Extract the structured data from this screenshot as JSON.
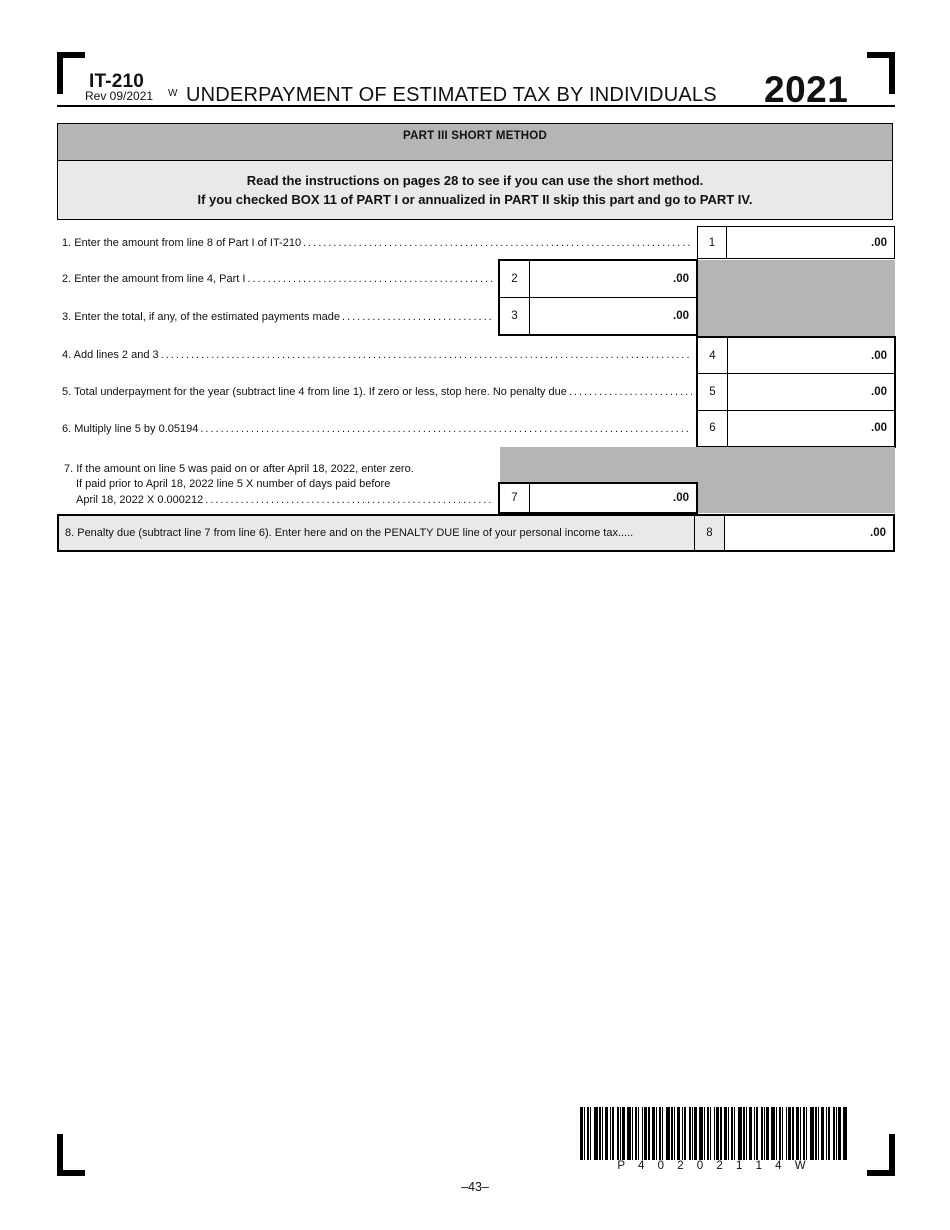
{
  "header": {
    "form_id": "IT-210",
    "revision": "Rev 09/2021",
    "w_mark": "W",
    "title": "UNDERPAYMENT OF ESTIMATED TAX BY INDIVIDUALS",
    "year": "2021"
  },
  "part3": {
    "bar_title": "PART III SHORT METHOD",
    "instructions_line1": "Read the instructions on pages 28 to see if you can use the short method.",
    "instructions_line2": "If you checked BOX 11 of PART I or annualized in PART II skip this part and go to PART IV."
  },
  "lines": {
    "l1": {
      "num": "1",
      "label": "1. Enter the amount from line 8 of Part I of IT-210",
      "value": ".00"
    },
    "l2": {
      "num": "2",
      "label": "2. Enter the amount from line 4, Part I",
      "value": ".00"
    },
    "l3": {
      "num": "3",
      "label": "3. Enter the total, if any, of the estimated payments made",
      "value": ".00"
    },
    "l4": {
      "num": "4",
      "label": "4. Add lines 2 and 3",
      "value": ".00"
    },
    "l5": {
      "num": "5",
      "label": "5. Total underpayment for the year (subtract line 4 from line 1). If zero or less, stop here. No penalty due",
      "value": ".00"
    },
    "l6": {
      "num": "6",
      "label": "6. Multiply line 5 by 0.05194",
      "value": ".00"
    },
    "l7": {
      "num": "7",
      "label_line1": "7. If the amount on line 5 was paid on or after April 18, 2022, enter zero.",
      "label_line2": "If paid prior to April 18, 2022 line 5 X number of days paid before",
      "label_line3": "April 18, 2022 X 0.000212",
      "value": ".00"
    },
    "l8": {
      "num": "8",
      "label": "8. Penalty due (subtract line 7 from line 6). Enter here and on the PENALTY DUE line of your personal income tax.....",
      "value": ".00"
    }
  },
  "barcode": {
    "text": "P 4 0 2 0 2 1 1 4 W"
  },
  "footer": {
    "page_number": "–43–"
  }
}
